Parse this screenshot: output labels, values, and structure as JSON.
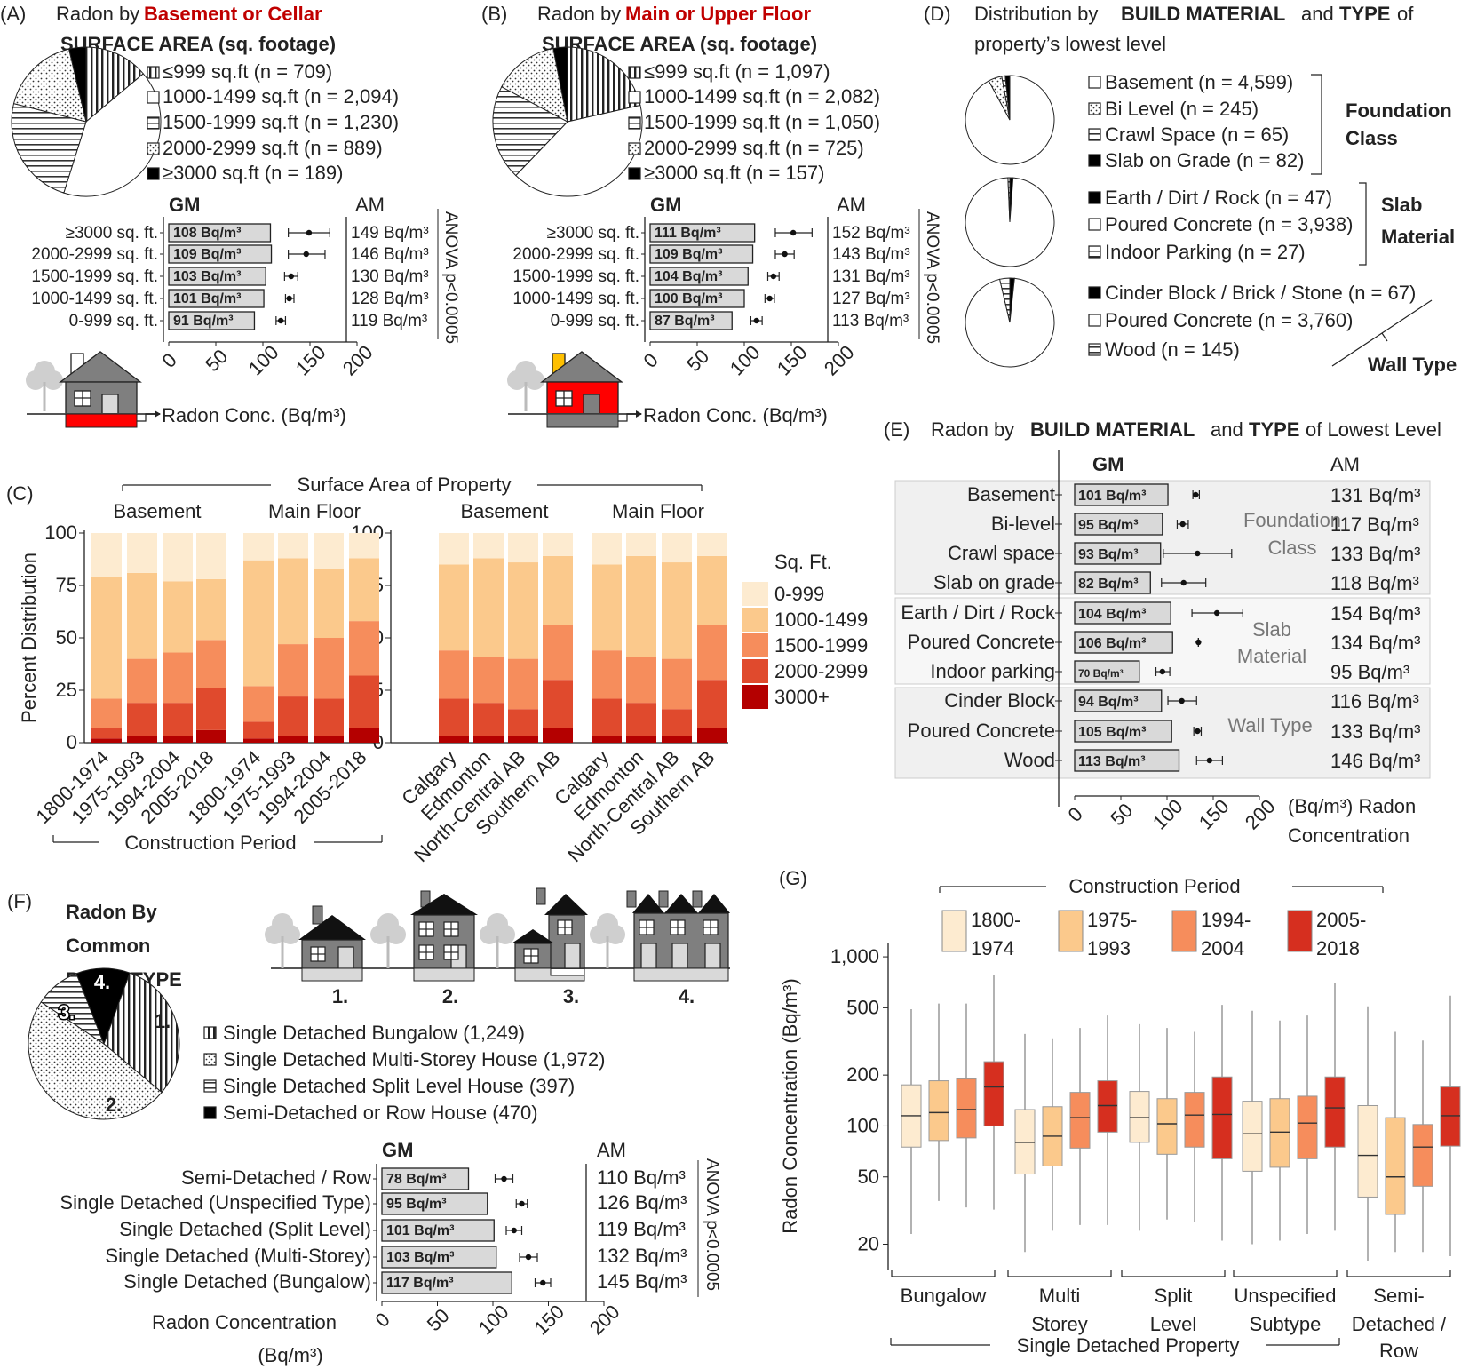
{
  "colors": {
    "sqft": [
      "#fdebd0",
      "#fbc98c",
      "#f68d5c",
      "#e04a2d",
      "#b40000"
    ],
    "period": [
      "#fdebd0",
      "#fbc98c",
      "#f68d5c",
      "#d62f1f"
    ],
    "bar_gray": "#d9d9d9",
    "house_gray": "#7f7f7f",
    "house_red": "#ff0000",
    "chimney_yellow": "#ffc000"
  },
  "panelA": {
    "label": "(A)",
    "title_pre": "Radon by ",
    "title_em": "Basement or Cellar",
    "subtitle": "SURFACE AREA (sq. footage)",
    "legend": [
      "≤999 sq.ft (n = 709)",
      "1000-1499 sq.ft (n = 2,094)",
      "1500-1999 sq.ft (n = 1,230)",
      "2000-2999 sq.ft (n = 889)",
      "≥3000 sq.ft (n = 189)"
    ],
    "gm_header": "GM",
    "am_header": "AM",
    "anova": "ANOVA p<0.0005",
    "xlabel": "Radon Conc. (Bq/m³)",
    "ticks": [
      "0",
      "50",
      "100",
      "150",
      "200"
    ]
  },
  "panelB": {
    "label": "(B)",
    "title_pre": "Radon by ",
    "title_em": "Main or Upper Floor",
    "subtitle": "SURFACE AREA (sq. footage)",
    "legend": [
      "≤999 sq.ft (n = 1,097)",
      "1000-1499 sq.ft (n = 2,082)",
      "1500-1999 sq.ft (n = 1,050)",
      "2000-2999 sq.ft (n = 725)",
      "≥3000 sq.ft (n = 157)"
    ],
    "gm_header": "GM",
    "am_header": "AM",
    "anova": "ANOVA p<0.0005",
    "xlabel": "Radon Conc. (Bq/m³)",
    "ticks": [
      "0",
      "50",
      "100",
      "150",
      "200"
    ]
  },
  "panelC": {
    "label": "(C)",
    "top_title": "Surface Area of Property",
    "group_labels": [
      "Basement",
      "Main Floor",
      "Basement",
      "Main Floor"
    ],
    "ylabel": "Percent Distribution",
    "yticks": [
      "0",
      "25",
      "50",
      "75",
      "100"
    ],
    "bottom_title": "Construction Period",
    "legend_title": "Sq. Ft.",
    "legend": [
      "0-999",
      "1000-1499",
      "1500-1999",
      "2000-2999",
      "3000+"
    ]
  },
  "panelD": {
    "label": "(D)",
    "title_pre": "Distribution by ",
    "title_b1": "BUILD MATERIAL",
    "title_mid": " and ",
    "title_b2": "TYPE",
    "title_post": " of",
    "title_line2": "property’s lowest level",
    "foundation": [
      "Basement (n = 4,599)",
      "Bi Level (n = 245)",
      "Crawl Space (n = 65)",
      "Slab on Grade (n = 82)"
    ],
    "foundation_label": [
      "Foundation",
      "Class"
    ],
    "slab": [
      "Earth / Dirt / Rock (n = 47)",
      "Poured Concrete (n = 3,938)",
      "Indoor Parking (n = 27)"
    ],
    "slab_label": [
      "Slab",
      "Material"
    ],
    "wall": [
      "Cinder Block / Brick / Stone (n = 67)",
      "Poured Concrete (n = 3,760)",
      "Wood (n = 145)"
    ],
    "wall_label": "Wall Type"
  },
  "panelE": {
    "label": "(E)",
    "title_pre": "Radon by ",
    "title_b1": "BUILD MATERIAL",
    "title_mid": " and ",
    "title_b2": "TYPE",
    "title_post": " of Lowest Level",
    "gm_header": "GM",
    "am_header": "AM",
    "group_labels": [
      [
        "Foundation",
        "Class"
      ],
      [
        "Slab",
        "Material"
      ],
      [
        "Wall Type"
      ]
    ],
    "xlabel": [
      "(Bq/m³) Radon",
      "Concentration"
    ],
    "ticks": [
      "0",
      "50",
      "100",
      "150",
      "200"
    ]
  },
  "panelF": {
    "label": "(F)",
    "title": [
      "Radon By",
      "Common",
      "BUILD TYPE"
    ],
    "house_numbers": [
      "1.",
      "2.",
      "3.",
      "4."
    ],
    "legend": [
      "Single Detached Bungalow (1,249)",
      "Single Detached Multi-Storey House (1,972)",
      "Single Detached Split Level House (397)",
      "Semi-Detached or Row House (470)"
    ],
    "gm_header": "GM",
    "am_header": "AM",
    "anova": "ANOVA p<0.0005",
    "xlabel": [
      "Radon Concentration",
      "(Bq/m³)"
    ],
    "ticks": [
      "0",
      "50",
      "100",
      "150",
      "200"
    ]
  },
  "panelG": {
    "label": "(G)",
    "legend_title": "Construction Period",
    "legend": [
      [
        "1800-",
        "1974"
      ],
      [
        "1975-",
        "1993"
      ],
      [
        "1994-",
        "2004"
      ],
      [
        "2005-",
        "2018"
      ]
    ],
    "ylabel": "Radon Concentration (Bq/m³)",
    "categories": [
      [
        "Bungalow"
      ],
      [
        "Multi",
        "Storey"
      ],
      [
        "Split",
        "Level"
      ],
      [
        "Unspecified",
        "Subtype"
      ],
      [
        "Semi-",
        "Detached /",
        "Row"
      ]
    ],
    "bottom_label": "Single Detached Property"
  },
  "chart_data": [
    {
      "id": "A-pie",
      "type": "pie",
      "title": "Radon by Basement or Cellar SURFACE AREA (sq. footage)",
      "labels": [
        "≤999",
        "1000-1499",
        "1500-1999",
        "2000-2999",
        "≥3000"
      ],
      "values": [
        709,
        2094,
        1230,
        889,
        189
      ],
      "patterns": [
        "vstripe",
        "white",
        "hstripe",
        "dots",
        "black"
      ]
    },
    {
      "id": "A-gm",
      "type": "bar",
      "categories": [
        "≥3000 sq. ft.",
        "2000-2999 sq. ft.",
        "1500-1999 sq. ft.",
        "1000-1499 sq. ft.",
        "0-999 sq. ft."
      ],
      "gm": [
        108,
        109,
        103,
        101,
        91
      ],
      "gm_labels": [
        "108 Bq/m³",
        "109 Bq/m³",
        "103 Bq/m³",
        "101 Bq/m³",
        "91 Bq/m³"
      ],
      "am": [
        149,
        146,
        130,
        128,
        119
      ],
      "am_labels": [
        "149 Bq/m³",
        "146 Bq/m³",
        "130 Bq/m³",
        "128 Bq/m³",
        "119 Bq/m³"
      ],
      "ci": [
        [
          127,
          171
        ],
        [
          127,
          166
        ],
        [
          123,
          137
        ],
        [
          124,
          133
        ],
        [
          114,
          124
        ]
      ],
      "xlim": [
        0,
        200
      ]
    },
    {
      "id": "B-pie",
      "type": "pie",
      "title": "Radon by Main or Upper Floor SURFACE AREA (sq. footage)",
      "labels": [
        "≤999",
        "1000-1499",
        "1500-1999",
        "2000-2999",
        "≥3000"
      ],
      "values": [
        1097,
        2082,
        1050,
        725,
        157
      ],
      "patterns": [
        "vstripe",
        "white",
        "hstripe",
        "dots",
        "black"
      ]
    },
    {
      "id": "B-gm",
      "type": "bar",
      "categories": [
        "≥3000 sq. ft.",
        "2000-2999 sq. ft.",
        "1500-1999 sq. ft.",
        "1000-1499 sq. ft.",
        "0-999 sq. ft."
      ],
      "gm": [
        111,
        109,
        104,
        100,
        87
      ],
      "gm_labels": [
        "111 Bq/m³",
        "109 Bq/m³",
        "104 Bq/m³",
        "100 Bq/m³",
        "87 Bq/m³"
      ],
      "am": [
        152,
        143,
        131,
        127,
        113
      ],
      "am_labels": [
        "152 Bq/m³",
        "143 Bq/m³",
        "131 Bq/m³",
        "127 Bq/m³",
        "113 Bq/m³"
      ],
      "ci": [
        [
          133,
          172
        ],
        [
          133,
          153
        ],
        [
          125,
          137
        ],
        [
          122,
          132
        ],
        [
          107,
          119
        ]
      ],
      "xlim": [
        0,
        200
      ]
    },
    {
      "id": "C",
      "type": "bar",
      "stacked": true,
      "ylim": [
        0,
        100
      ],
      "series_names": [
        "3000+",
        "2000-2999",
        "1500-1999",
        "1000-1499",
        "0-999"
      ],
      "groups": [
        {
          "categories": [
            "1800-1974",
            "1975-1993",
            "1994-2004",
            "2005-2018"
          ],
          "stacks": [
            [
              2,
              5,
              14,
              58,
              21
            ],
            [
              3,
              16,
              21,
              41,
              19
            ],
            [
              3,
              16,
              24,
              34,
              23
            ],
            [
              6,
              20,
              23,
              29,
              22
            ]
          ]
        },
        {
          "categories": [
            "1800-1974",
            "1975-1993",
            "1994-2004",
            "2005-2018"
          ],
          "stacks": [
            [
              2,
              8,
              17,
              60,
              13
            ],
            [
              3,
              19,
              25,
              41,
              12
            ],
            [
              3,
              18,
              29,
              33,
              17
            ],
            [
              7,
              25,
              26,
              30,
              12
            ]
          ]
        },
        {
          "categories": [
            "Calgary",
            "Edmonton",
            "North-Central AB",
            "Southern AB"
          ],
          "stacks": [
            [
              3,
              18,
              23,
              41,
              15
            ],
            [
              3,
              16,
              22,
              47,
              12
            ],
            [
              3,
              13,
              24,
              46,
              14
            ],
            [
              7,
              23,
              26,
              33,
              11
            ]
          ]
        },
        {
          "categories": [
            "Calgary",
            "Edmonton",
            "North-Central AB",
            "Southern AB"
          ],
          "stacks": [
            [
              3,
              18,
              23,
              41,
              15
            ],
            [
              3,
              16,
              22,
              48,
              11
            ],
            [
              3,
              13,
              24,
              46,
              14
            ],
            [
              7,
              23,
              26,
              33,
              11
            ]
          ]
        }
      ]
    },
    {
      "id": "D-pies",
      "type": "pie",
      "pies": [
        {
          "labels": [
            "Basement",
            "Bi Level",
            "Crawl Space",
            "Slab on Grade"
          ],
          "values": [
            4599,
            245,
            65,
            82
          ],
          "patterns": [
            "white",
            "dots",
            "hstripe",
            "black"
          ]
        },
        {
          "labels": [
            "Earth / Dirt / Rock",
            "Poured Concrete",
            "Indoor Parking"
          ],
          "values": [
            47,
            3938,
            27
          ],
          "patterns": [
            "black",
            "white",
            "hstripe"
          ]
        },
        {
          "labels": [
            "Cinder Block / Brick / Stone",
            "Poured Concrete",
            "Wood"
          ],
          "values": [
            67,
            3760,
            145
          ],
          "patterns": [
            "black",
            "white",
            "hstripe"
          ]
        }
      ]
    },
    {
      "id": "E",
      "type": "bar",
      "categories": [
        "Basement",
        "Bi-level",
        "Crawl space",
        "Slab on grade",
        "Earth / Dirt / Rock",
        "Poured Concrete",
        "Indoor parking",
        "Cinder Block",
        "Poured Concrete",
        "Wood"
      ],
      "gm": [
        101,
        95,
        93,
        82,
        104,
        106,
        70,
        94,
        105,
        113
      ],
      "gm_labels": [
        "101 Bq/m³",
        "95 Bq/m³",
        "93 Bq/m³",
        "82 Bq/m³",
        "104 Bq/m³",
        "106 Bq/m³",
        "70 Bq/m³",
        "94 Bq/m³",
        "105 Bq/m³",
        "113 Bq/m³"
      ],
      "am": [
        131,
        117,
        133,
        118,
        154,
        134,
        95,
        116,
        133,
        146
      ],
      "am_labels": [
        "131 Bq/m³",
        "117 Bq/m³",
        "133 Bq/m³",
        "118 Bq/m³",
        "154 Bq/m³",
        "134 Bq/m³",
        "95 Bq/m³",
        "116 Bq/m³",
        "133 Bq/m³",
        "146 Bq/m³"
      ],
      "ci": [
        [
          128,
          135
        ],
        [
          111,
          123
        ],
        [
          96,
          170
        ],
        [
          94,
          142
        ],
        [
          127,
          182
        ],
        [
          134,
          134
        ],
        [
          88,
          103
        ],
        [
          101,
          132
        ],
        [
          129,
          137
        ],
        [
          132,
          160
        ]
      ],
      "groups": [
        [
          0,
          3
        ],
        [
          4,
          6
        ],
        [
          7,
          9
        ]
      ],
      "xlim": [
        0,
        200
      ]
    },
    {
      "id": "F-pie",
      "type": "pie",
      "labels": [
        "Single Detached Bungalow",
        "Single Detached Multi-Storey House",
        "Single Detached Split Level House",
        "Semi-Detached or Row House"
      ],
      "values": [
        1249,
        1972,
        397,
        470
      ],
      "patterns": [
        "vstripe",
        "dots",
        "hstripe",
        "black"
      ]
    },
    {
      "id": "F-gm",
      "type": "bar",
      "categories": [
        "Semi-Detached / Row",
        "Single Detached (Unspecified Type)",
        "Single Detached (Split Level)",
        "Single Detached (Multi-Storey)",
        "Single Detached (Bungalow)"
      ],
      "gm": [
        78,
        95,
        101,
        103,
        117
      ],
      "gm_labels": [
        "78 Bq/m³",
        "95 Bq/m³",
        "101 Bq/m³",
        "103 Bq/m³",
        "117 Bq/m³"
      ],
      "am": [
        110,
        126,
        119,
        132,
        145
      ],
      "am_labels": [
        "110 Bq/m³",
        "126 Bq/m³",
        "119 Bq/m³",
        "132 Bq/m³",
        "145 Bq/m³"
      ],
      "ci": [
        [
          102,
          118
        ],
        [
          121,
          131
        ],
        [
          112,
          126
        ],
        [
          124,
          140
        ],
        [
          138,
          152
        ]
      ],
      "xlim": [
        0,
        200
      ]
    },
    {
      "id": "G",
      "type": "box",
      "yscale": "log",
      "ylim": [
        14,
        1200
      ],
      "yticks": [
        20,
        50,
        100,
        200,
        500,
        1000
      ],
      "ytick_labels": [
        "20",
        "50",
        "100",
        "200",
        "500",
        "1,000"
      ],
      "categories": [
        "Bungalow",
        "Multi Storey",
        "Split Level",
        "Unspecified Subtype",
        "Semi-Detached / Row"
      ],
      "series_names": [
        "1800-1974",
        "1975-1993",
        "1994-2004",
        "2005-2018"
      ],
      "boxes": [
        [
          [
            23,
            75,
            115,
            175,
            490
          ],
          [
            36,
            82,
            120,
            185,
            530
          ],
          [
            33,
            85,
            125,
            190,
            530
          ],
          [
            32,
            100,
            170,
            240,
            780
          ]
        ],
        [
          [
            18,
            52,
            80,
            125,
            350
          ],
          [
            24,
            58,
            87,
            130,
            330
          ],
          [
            26,
            74,
            112,
            158,
            380
          ],
          [
            26,
            92,
            132,
            185,
            450
          ]
        ],
        [
          [
            24,
            80,
            112,
            160,
            400
          ],
          [
            28,
            68,
            103,
            145,
            380
          ],
          [
            27,
            75,
            116,
            158,
            360
          ],
          [
            21,
            64,
            117,
            195,
            520
          ]
        ],
        [
          [
            20,
            54,
            90,
            140,
            480
          ],
          [
            21,
            57,
            92,
            145,
            420
          ],
          [
            23,
            64,
            104,
            150,
            450
          ],
          [
            24,
            75,
            128,
            195,
            700
          ]
        ],
        [
          [
            16,
            38,
            67,
            132,
            510
          ],
          [
            18,
            30,
            50,
            112,
            360
          ],
          [
            18,
            44,
            75,
            102,
            320
          ],
          [
            17,
            76,
            115,
            170,
            590
          ]
        ]
      ]
    }
  ]
}
